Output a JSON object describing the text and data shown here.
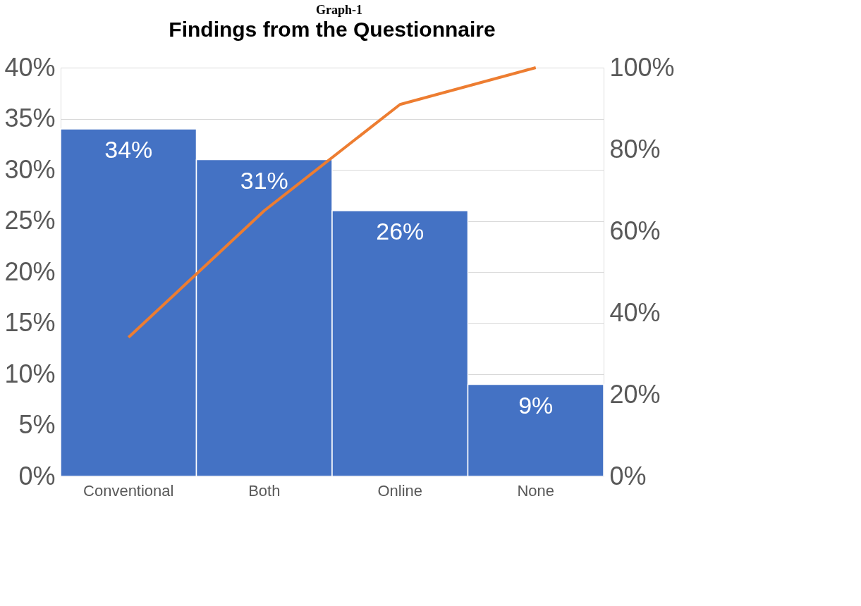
{
  "chart_data": {
    "type": "bar",
    "title": "Findings from the Questionnaire",
    "annotations": [
      "Graph-1"
    ],
    "categories": [
      "Conventional",
      "Both",
      "Online",
      "None"
    ],
    "series": [
      {
        "color": "#4472c4",
        "values": [
          34,
          31,
          26,
          9
        ],
        "value_labels": [
          "34%",
          "31%",
          "26%",
          "9%"
        ]
      },
      {
        "type": "line",
        "axis": "y2",
        "color": "#ed7d31",
        "values": [
          34,
          65,
          91,
          100
        ]
      }
    ],
    "ylim": [
      0,
      40
    ],
    "yticks": [
      {
        "value": 0,
        "label": "0%"
      },
      {
        "value": 5,
        "label": "5%"
      },
      {
        "value": 10,
        "label": "10%"
      },
      {
        "value": 15,
        "label": "15%"
      },
      {
        "value": 20,
        "label": "20%"
      },
      {
        "value": 25,
        "label": "25%"
      },
      {
        "value": 30,
        "label": "30%"
      },
      {
        "value": 35,
        "label": "35%"
      },
      {
        "value": 40,
        "label": "40%"
      }
    ],
    "y2lim": [
      0,
      100
    ],
    "y2ticks": [
      {
        "value": 0,
        "label": "0%"
      },
      {
        "value": 20,
        "label": "20%"
      },
      {
        "value": 40,
        "label": "40%"
      },
      {
        "value": 60,
        "label": "60%"
      },
      {
        "value": 80,
        "label": "80%"
      },
      {
        "value": 100,
        "label": "100%"
      }
    ],
    "grid": "y",
    "legend": false
  }
}
